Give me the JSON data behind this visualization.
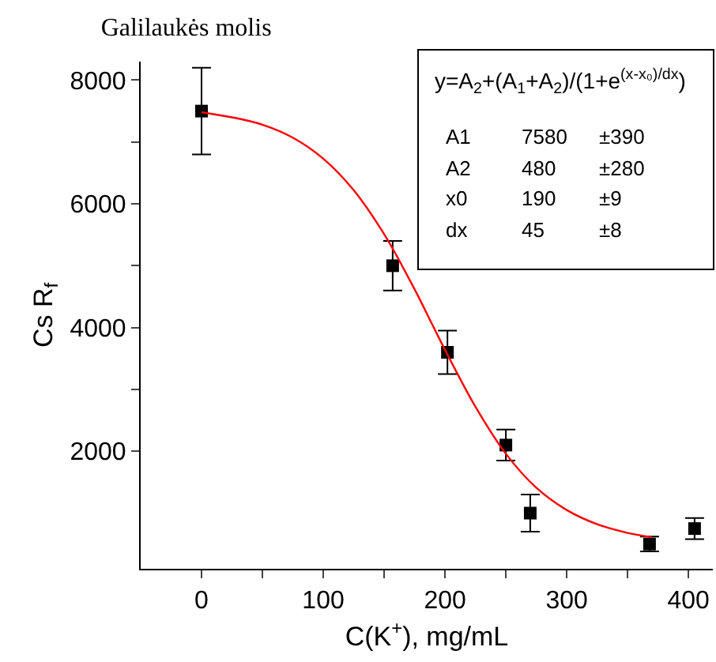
{
  "chart_data": {
    "type": "scatter",
    "title": "Galilaukės molis",
    "xlabel": "C(K$^{+}$), mg/mL",
    "ylabel": "Cs R$_{f}$",
    "xlim": [
      -50,
      420
    ],
    "ylim": [
      100,
      8300
    ],
    "xticks": [
      0,
      {
        "value": 50,
        "label": null
      },
      100,
      {
        "value": 150,
        "label": null
      },
      200,
      {
        "value": 250,
        "label": null
      },
      300,
      {
        "value": 350,
        "label": null
      },
      400
    ],
    "yticks": [
      2000,
      {
        "value": 3000,
        "label": null
      },
      4000,
      {
        "value": 5000,
        "label": null
      },
      6000,
      {
        "value": 7000,
        "label": null
      },
      8000
    ],
    "marker": "square",
    "legend": false,
    "series": [
      {
        "color": "#000000",
        "x": [
          0,
          157,
          202,
          250,
          270,
          368,
          405
        ],
        "values": [
          7500,
          5000,
          3600,
          2100,
          1000,
          500,
          750
        ],
        "errors": [
          700,
          400,
          350,
          250,
          300,
          120,
          170
        ]
      },
      {
        "type": "line",
        "marker": "none",
        "color": "#ff0000",
        "x": [
          0,
          25,
          50,
          75,
          100,
          125,
          150,
          175,
          190,
          200,
          225,
          250,
          275,
          300,
          325,
          350,
          370
        ],
        "values": [
          7480,
          7400,
          7280,
          7070,
          6730,
          6220,
          5510,
          4620,
          4030,
          3640,
          2720,
          1960,
          1410,
          1050,
          820,
          680,
          610
        ]
      }
    ],
    "annotations": [
      "y=A$_{2}$+(A$_{1}$+A$_{2}$)/(1+e$^{(x-x₀)/dx}$)",
      "A1",
      "7580",
      "±390",
      "A2",
      "480",
      "±280",
      "x0",
      "190",
      "±9",
      "dx",
      "45",
      "±8"
    ]
  }
}
